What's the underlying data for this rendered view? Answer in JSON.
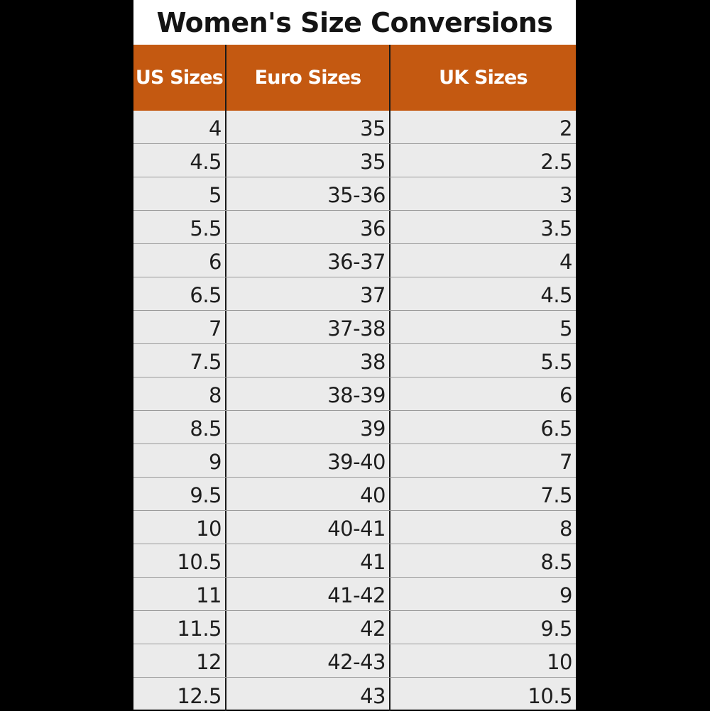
{
  "title": "Women's Size Conversions",
  "headers": [
    "US Sizes",
    "Euro Sizes",
    "UK Sizes"
  ],
  "rows": [
    [
      "4",
      "35",
      "2"
    ],
    [
      "4.5",
      "35",
      "2.5"
    ],
    [
      "5",
      "35-36",
      "3"
    ],
    [
      "5.5",
      "36",
      "3.5"
    ],
    [
      "6",
      "36-37",
      "4"
    ],
    [
      "6.5",
      "37",
      "4.5"
    ],
    [
      "7",
      "37-38",
      "5"
    ],
    [
      "7.5",
      "38",
      "5.5"
    ],
    [
      "8",
      "38-39",
      "6"
    ],
    [
      "8.5",
      "39",
      "6.5"
    ],
    [
      "9",
      "39-40",
      "7"
    ],
    [
      "9.5",
      "40",
      "7.5"
    ],
    [
      "10",
      "40-41",
      "8"
    ],
    [
      "10.5",
      "41",
      "8.5"
    ],
    [
      "11",
      "41-42",
      "9"
    ],
    [
      "11.5",
      "42",
      "9.5"
    ],
    [
      "12",
      "42-43",
      "10"
    ],
    [
      "12.5",
      "43",
      "10.5"
    ]
  ],
  "colors": {
    "header_bg": "#c45911",
    "row_bg": "#ebebeb",
    "title_bg": "#ffffff"
  }
}
